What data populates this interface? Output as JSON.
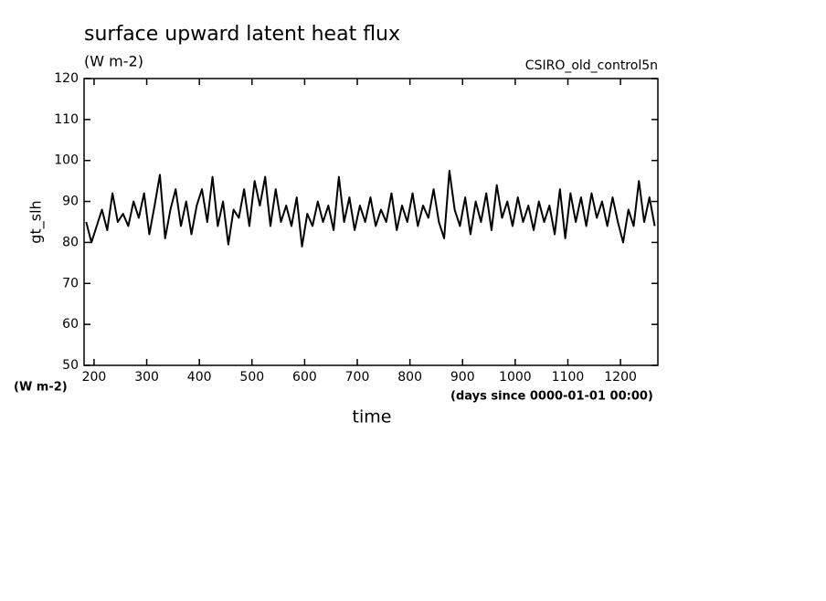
{
  "chart_data": {
    "type": "line",
    "title": "surface upward latent heat flux",
    "subtitle": "(W m-2)",
    "run_label": "CSIRO_old_control5n",
    "ylabel": "gt_slh",
    "y_units": "(W m-2)",
    "x_units": "(days since 0000-01-01 00:00)",
    "xlabel": "time",
    "color": "#000000",
    "xlim": [
      181,
      1271
    ],
    "ylim": [
      50,
      120
    ],
    "xticks": [
      200,
      300,
      400,
      500,
      600,
      700,
      800,
      900,
      1000,
      1100,
      1200
    ],
    "yticks": [
      50,
      60,
      70,
      80,
      90,
      100,
      110,
      120
    ],
    "x": [
      185,
      195,
      205,
      215,
      225,
      235,
      245,
      255,
      265,
      275,
      285,
      295,
      305,
      315,
      325,
      335,
      345,
      355,
      365,
      375,
      385,
      395,
      405,
      415,
      425,
      435,
      445,
      455,
      465,
      475,
      485,
      495,
      505,
      515,
      525,
      535,
      545,
      555,
      565,
      575,
      585,
      595,
      605,
      615,
      625,
      635,
      645,
      655,
      665,
      675,
      685,
      695,
      705,
      715,
      725,
      735,
      745,
      755,
      765,
      775,
      785,
      795,
      805,
      815,
      825,
      835,
      845,
      855,
      865,
      875,
      885,
      895,
      905,
      915,
      925,
      935,
      945,
      955,
      965,
      975,
      985,
      995,
      1005,
      1015,
      1025,
      1035,
      1045,
      1055,
      1065,
      1075,
      1085,
      1095,
      1105,
      1115,
      1125,
      1135,
      1145,
      1155,
      1165,
      1175,
      1185,
      1195,
      1205,
      1215,
      1225,
      1235,
      1245,
      1255,
      1265
    ],
    "values": [
      85,
      80,
      84,
      88,
      83,
      92,
      85,
      87,
      84,
      90,
      86,
      92,
      82,
      89,
      96.5,
      81,
      88,
      93,
      84,
      90,
      82,
      89,
      93,
      85,
      96,
      84,
      90,
      79.5,
      88,
      86,
      93,
      84,
      95,
      89,
      96,
      84,
      93,
      85,
      89,
      84,
      91,
      79,
      87,
      84,
      90,
      85,
      89,
      83,
      96,
      85,
      91,
      83,
      89,
      85,
      91,
      84,
      88,
      85,
      92,
      83,
      89,
      85,
      92,
      84,
      89,
      86,
      93,
      85,
      81,
      97.5,
      88,
      84,
      91,
      82,
      90,
      85,
      92,
      83,
      94,
      86,
      90,
      84,
      91,
      85,
      89,
      83,
      90,
      85,
      89,
      82,
      93,
      81,
      92,
      85,
      91,
      84,
      92,
      86,
      90,
      84,
      91,
      85,
      80,
      88,
      84,
      95,
      85,
      91,
      84
    ]
  }
}
